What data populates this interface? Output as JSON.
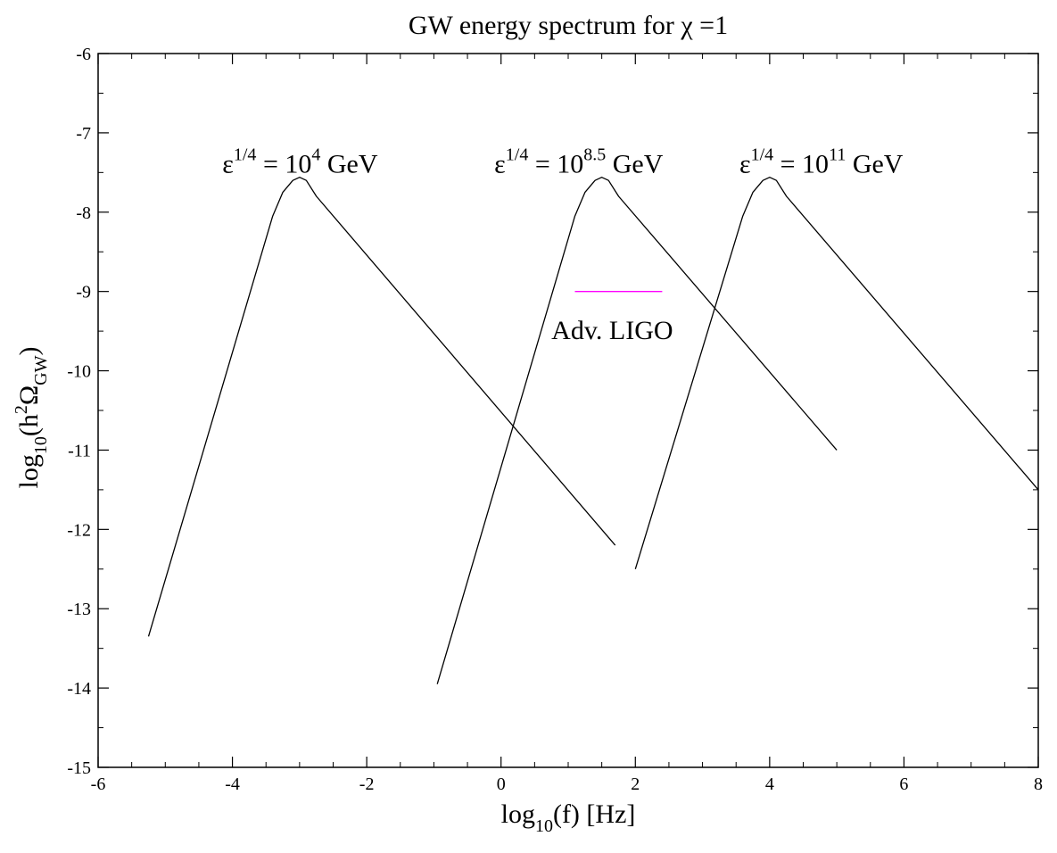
{
  "chart_data": {
    "type": "line",
    "title": "GW energy spectrum for χ =1",
    "xlabel": {
      "main": "log",
      "sub": "10",
      "rest": "(f) [Hz]"
    },
    "ylabel": {
      "pre": "log",
      "sub": "10",
      "open": "(h",
      "sup": "2",
      "omega": "Ω",
      "omega_sub": "GW",
      "close": ")"
    },
    "xlim": [
      -6,
      8
    ],
    "ylim": [
      -15,
      -6
    ],
    "xticks": [
      -6,
      -4,
      -2,
      0,
      2,
      4,
      6,
      8
    ],
    "yticks": [
      -15,
      -14,
      -13,
      -12,
      -11,
      -10,
      -9,
      -8,
      -7,
      -6
    ],
    "grid": false,
    "series": [
      {
        "color": "#000000",
        "x": [
          -5.25,
          -3.4,
          -3.25,
          -3.1,
          -3.0,
          -2.9,
          -2.75,
          1.7
        ],
        "y": [
          -13.35,
          -8.05,
          -7.75,
          -7.6,
          -7.56,
          -7.6,
          -7.8,
          -12.2
        ]
      },
      {
        "color": "#000000",
        "x": [
          -0.95,
          1.1,
          1.25,
          1.4,
          1.5,
          1.6,
          1.75,
          5.0
        ],
        "y": [
          -13.95,
          -8.05,
          -7.75,
          -7.6,
          -7.56,
          -7.6,
          -7.8,
          -11.0
        ]
      },
      {
        "color": "#000000",
        "x": [
          2.0,
          3.6,
          3.75,
          3.9,
          4.0,
          4.1,
          4.25,
          8.0
        ],
        "y": [
          -12.5,
          -8.05,
          -7.75,
          -7.6,
          -7.56,
          -7.6,
          -7.8,
          -11.5
        ]
      },
      {
        "color": "#ff00ff",
        "x": [
          1.1,
          2.4
        ],
        "y": [
          -9.0,
          -9.0
        ]
      }
    ],
    "annotations": [
      {
        "base": "ε",
        "sup": "1/4",
        "mid": " = 10",
        "exp": "4",
        "unit": " GeV",
        "x": -4.15,
        "y": -7.5
      },
      {
        "base": "ε",
        "sup": "1/4",
        "mid": " = 10",
        "exp": "8.5",
        "unit": " GeV",
        "x": -0.1,
        "y": -7.5
      },
      {
        "base": "ε",
        "sup": "1/4",
        "mid": " = 10",
        "exp": "11",
        "unit": " GeV",
        "x": 3.55,
        "y": -7.5
      },
      {
        "text": "Adv. LIGO",
        "color": "#ff00ff",
        "x": 0.75,
        "y": -9.6
      }
    ]
  }
}
